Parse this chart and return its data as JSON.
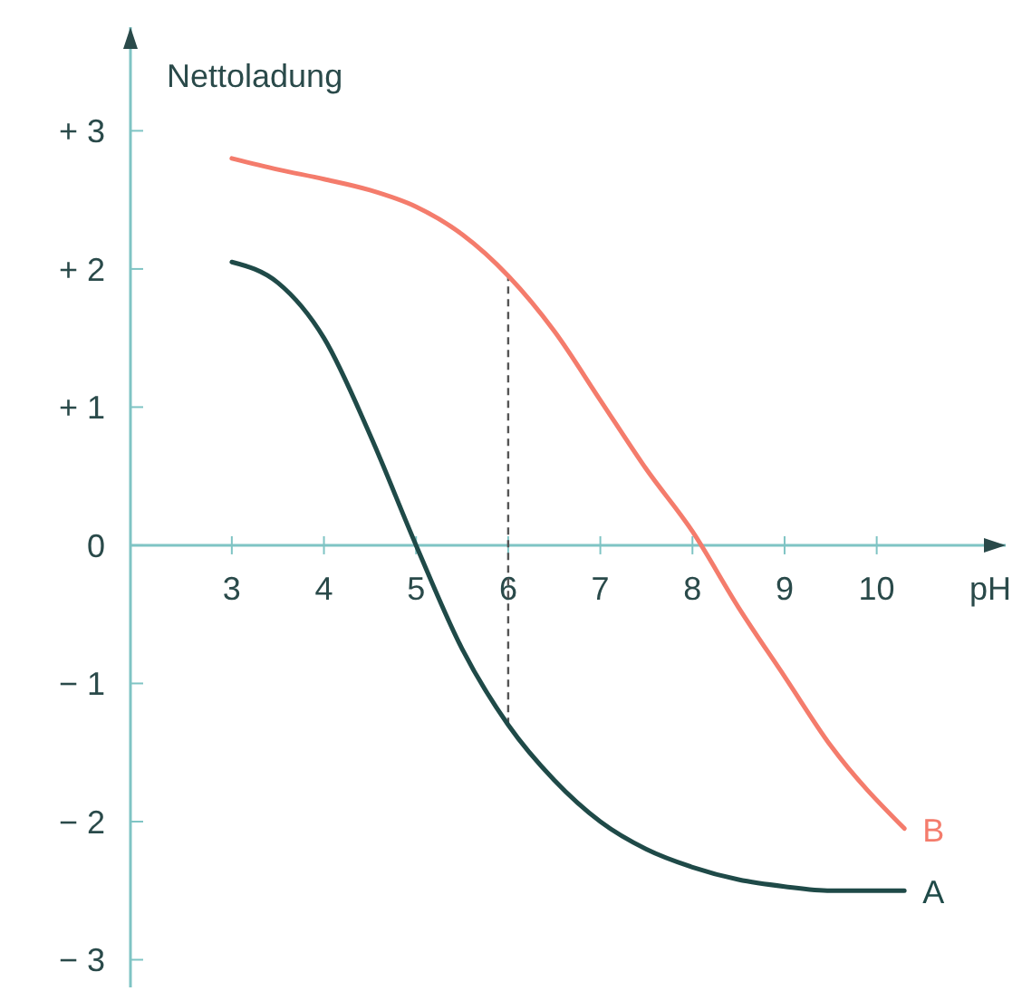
{
  "chart_data": {
    "type": "line",
    "ylabel": "Nettoladung",
    "xlabel": "pH",
    "xlim": [
      1.9,
      11.4
    ],
    "ylim": [
      -3.2,
      3.75
    ],
    "xticks": [
      3,
      4,
      5,
      6,
      7,
      8,
      9,
      10
    ],
    "yticks": [
      {
        "value": 3,
        "label": "+ 3"
      },
      {
        "value": 2,
        "label": "+ 2"
      },
      {
        "value": 1,
        "label": "+ 1"
      },
      0,
      {
        "value": -1,
        "label": "− 1"
      },
      {
        "value": -2,
        "label": "− 2"
      },
      {
        "value": -3,
        "label": "− 3"
      }
    ],
    "grid": false,
    "marker": "none",
    "line_style": "solid",
    "ref_lines": [
      {
        "axis": "x",
        "value": 6,
        "line_style": "dashed",
        "color": "#555555"
      }
    ],
    "series": [
      {
        "name": "A",
        "color": "#1f4a48",
        "x": [
          3,
          3.5,
          4,
          4.5,
          5,
          5.5,
          6,
          6.5,
          7,
          7.5,
          8,
          8.5,
          9,
          9.5,
          10.3
        ],
        "values": [
          2.05,
          1.9,
          1.5,
          0.8,
          0,
          -0.75,
          -1.3,
          -1.7,
          -2,
          -2.2,
          -2.33,
          -2.42,
          -2.47,
          -2.5,
          -2.5
        ]
      },
      {
        "name": "B",
        "color": "#f47c6c",
        "x": [
          3,
          3.5,
          4,
          4.5,
          5,
          5.5,
          6,
          6.5,
          7,
          7.5,
          8,
          8.5,
          9,
          9.5,
          10.3
        ],
        "values": [
          2.8,
          2.72,
          2.65,
          2.57,
          2.45,
          2.25,
          1.95,
          1.55,
          1.05,
          0.55,
          0.1,
          -0.45,
          -0.95,
          -1.45,
          -2.05
        ]
      }
    ]
  }
}
